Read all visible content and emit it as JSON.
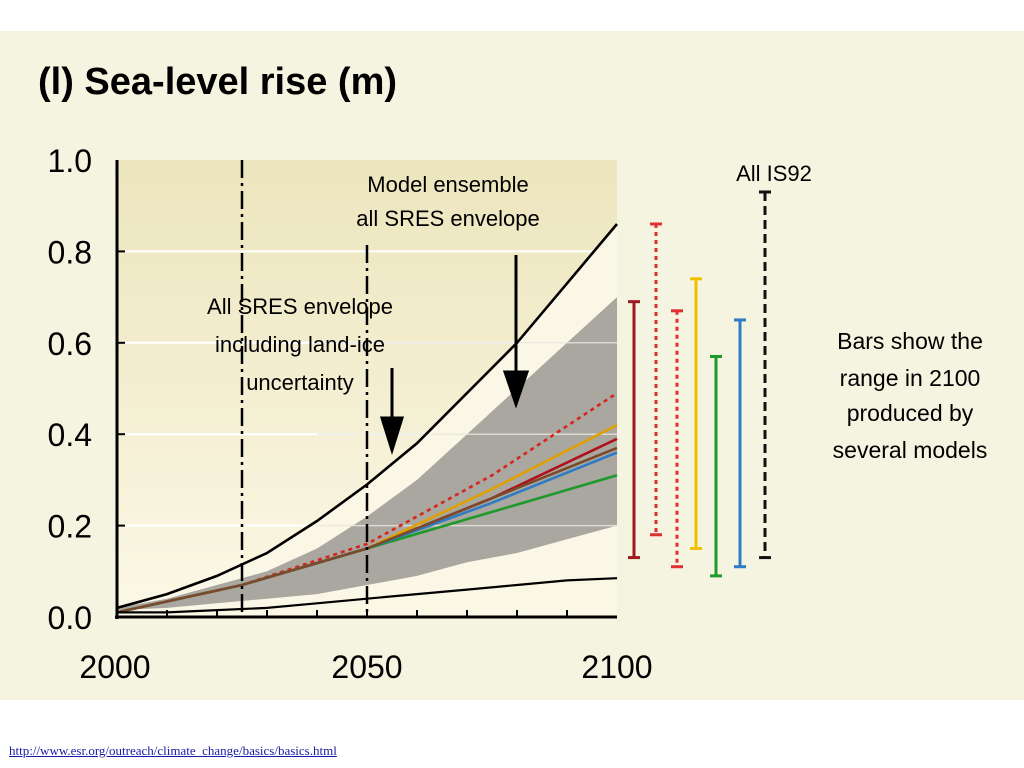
{
  "chart_data": {
    "type": "line",
    "title": "(l) Sea-level rise (m)",
    "x_ticks": [
      "2000",
      "2050",
      "2100"
    ],
    "y_ticks": [
      "0.0",
      "0.2",
      "0.4",
      "0.6",
      "0.8",
      "1.0"
    ],
    "xlim": [
      2000,
      2100
    ],
    "ylim": [
      0,
      1.0
    ],
    "grid": "horizontal",
    "annotations": {
      "model_ensemble": [
        "Model ensemble",
        "all SRES envelope"
      ],
      "all_sres": [
        "All SRES envelope",
        "including land-ice",
        "uncertainty"
      ],
      "all_is92": "All IS92",
      "bars_note": [
        "Bars show the",
        "range in 2100",
        "produced by",
        "several models"
      ]
    },
    "envelope_all_sres_incl_land_ice": {
      "x": [
        2000,
        2010,
        2020,
        2030,
        2040,
        2050,
        2060,
        2070,
        2080,
        2090,
        2100
      ],
      "upper": [
        0.02,
        0.05,
        0.09,
        0.14,
        0.21,
        0.29,
        0.38,
        0.49,
        0.6,
        0.73,
        0.86
      ],
      "lower": [
        0.01,
        0.01,
        0.015,
        0.02,
        0.03,
        0.04,
        0.05,
        0.06,
        0.07,
        0.08,
        0.085
      ]
    },
    "envelope_model_ensemble": {
      "x": [
        2000,
        2010,
        2020,
        2030,
        2040,
        2050,
        2060,
        2070,
        2080,
        2090,
        2100
      ],
      "upper": [
        0.02,
        0.04,
        0.07,
        0.1,
        0.15,
        0.22,
        0.3,
        0.4,
        0.5,
        0.6,
        0.7
      ],
      "lower": [
        0.015,
        0.02,
        0.03,
        0.04,
        0.05,
        0.07,
        0.09,
        0.12,
        0.14,
        0.17,
        0.2
      ]
    },
    "series": [
      {
        "color": "#b0121b",
        "dashed": false,
        "x": [
          2000,
          2025,
          2050,
          2075,
          2100
        ],
        "values": [
          0.01,
          0.07,
          0.15,
          0.26,
          0.39
        ]
      },
      {
        "color": "#d8241c",
        "dashed": true,
        "x": [
          2000,
          2025,
          2050,
          2075,
          2100
        ],
        "values": [
          0.01,
          0.07,
          0.16,
          0.31,
          0.49
        ]
      },
      {
        "color": "#e0a000",
        "dashed": false,
        "x": [
          2000,
          2025,
          2050,
          2075,
          2100
        ],
        "values": [
          0.01,
          0.07,
          0.15,
          0.28,
          0.42
        ]
      },
      {
        "color": "#1f9a2a",
        "dashed": false,
        "x": [
          2000,
          2025,
          2050,
          2075,
          2100
        ],
        "values": [
          0.01,
          0.07,
          0.15,
          0.23,
          0.31
        ]
      },
      {
        "color": "#2f7bc4",
        "dashed": false,
        "x": [
          2000,
          2025,
          2050,
          2075,
          2100
        ],
        "values": [
          0.01,
          0.07,
          0.15,
          0.25,
          0.36
        ]
      },
      {
        "color": "#7a4a2a",
        "dashed": false,
        "x": [
          2000,
          2025,
          2050,
          2075,
          2100
        ],
        "values": [
          0.01,
          0.07,
          0.15,
          0.26,
          0.37
        ]
      }
    ],
    "range_bars_2100": [
      {
        "color": "#a01820",
        "dashed": false,
        "min": 0.13,
        "max": 0.69
      },
      {
        "color": "#e03030",
        "dashed": true,
        "min": 0.18,
        "max": 0.86
      },
      {
        "color": "#e03030",
        "dashed": true,
        "min": 0.11,
        "max": 0.67
      },
      {
        "color": "#f0c000",
        "dashed": false,
        "min": 0.15,
        "max": 0.74
      },
      {
        "color": "#1f9a2a",
        "dashed": false,
        "min": 0.09,
        "max": 0.57
      },
      {
        "color": "#2f7bc4",
        "dashed": false,
        "min": 0.11,
        "max": 0.65
      },
      {
        "color": "#111111",
        "dashed": true,
        "min": 0.13,
        "max": 0.93
      }
    ],
    "colors": {
      "figure_bg": "#f4f4e0",
      "plot_bg": "#f5f1d2",
      "outer_envelope": "#fbf7e6",
      "inner_envelope": "#a9a79f",
      "grid": "#ffffff"
    }
  },
  "footer": {
    "link": "http://www.esr.org/outreach/climate_change/basics/basics.html"
  }
}
